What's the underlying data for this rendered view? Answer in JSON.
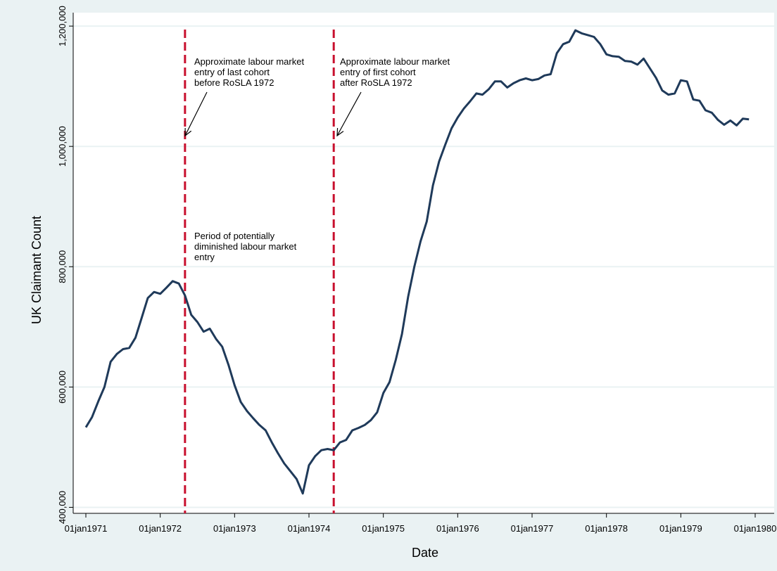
{
  "chart_data": {
    "type": "line",
    "xlabel": "Date",
    "ylabel": "UK Claimant Count",
    "xlim": [
      1971.0,
      1980.0
    ],
    "ylim": [
      390000,
      1220000
    ],
    "x_ticks": [
      {
        "value": 1971,
        "label": "01jan1971"
      },
      {
        "value": 1972,
        "label": "01jan1972"
      },
      {
        "value": 1973,
        "label": "01jan1973"
      },
      {
        "value": 1974,
        "label": "01jan1974"
      },
      {
        "value": 1975,
        "label": "01jan1975"
      },
      {
        "value": 1976,
        "label": "01jan1976"
      },
      {
        "value": 1977,
        "label": "01jan1977"
      },
      {
        "value": 1978,
        "label": "01jan1978"
      },
      {
        "value": 1979,
        "label": "01jan1979"
      },
      {
        "value": 1980,
        "label": "01jan1980"
      }
    ],
    "y_ticks": [
      {
        "value": 400000,
        "label": "400,000"
      },
      {
        "value": 600000,
        "label": "600,000"
      },
      {
        "value": 800000,
        "label": "800,000"
      },
      {
        "value": 1000000,
        "label": "1,000,000"
      },
      {
        "value": 1200000,
        "label": "1,200,000"
      }
    ],
    "grid": true,
    "colors": {
      "line": "#1f3a5a",
      "reference_line": "#c8102e",
      "panel": "#eaf2f3",
      "plot": "#ffffff",
      "grid": "#eaf2f3"
    },
    "series": [
      {
        "x": [
          1971.0,
          1971.083,
          1971.167,
          1971.25,
          1971.333,
          1971.417,
          1971.5,
          1971.583,
          1971.667,
          1971.75,
          1971.833,
          1971.917,
          1972.0,
          1972.083,
          1972.167,
          1972.25,
          1972.333,
          1972.417,
          1972.5,
          1972.583,
          1972.667,
          1972.75,
          1972.833,
          1972.917,
          1973.0,
          1973.083,
          1973.167,
          1973.25,
          1973.333,
          1973.417,
          1973.5,
          1973.583,
          1973.667,
          1973.75,
          1973.833,
          1973.917,
          1974.0,
          1974.083,
          1974.167,
          1974.25,
          1974.333,
          1974.417,
          1974.5,
          1974.583,
          1974.667,
          1974.75,
          1974.833,
          1974.917,
          1975.0,
          1975.083,
          1975.167,
          1975.25,
          1975.333,
          1975.417,
          1975.5,
          1975.583,
          1975.667,
          1975.75,
          1975.833,
          1975.917,
          1976.0,
          1976.083,
          1976.167,
          1976.25,
          1976.333,
          1976.417,
          1976.5,
          1976.583,
          1976.667,
          1976.75,
          1976.833,
          1976.917,
          1977.0,
          1977.083,
          1977.167,
          1977.25,
          1977.333,
          1977.417,
          1977.5,
          1977.583,
          1977.667,
          1977.75,
          1977.833,
          1977.917,
          1978.0,
          1978.083,
          1978.167,
          1978.25,
          1978.333,
          1978.417,
          1978.5,
          1978.583,
          1978.667,
          1978.75,
          1978.833,
          1978.917,
          1979.0,
          1979.083,
          1979.167,
          1979.25,
          1979.333,
          1979.417,
          1979.5,
          1979.583,
          1979.667,
          1979.75,
          1979.833,
          1979.917
        ],
        "values": [
          533000,
          550000,
          576000,
          600000,
          642000,
          655000,
          663000,
          665000,
          682000,
          715000,
          748000,
          758000,
          755000,
          765000,
          776000,
          772000,
          752000,
          720000,
          708000,
          692000,
          697000,
          680000,
          667000,
          637000,
          603000,
          575000,
          560000,
          548000,
          537000,
          528000,
          508000,
          490000,
          473000,
          460000,
          447000,
          423000,
          470000,
          485000,
          495000,
          497000,
          495000,
          508000,
          512000,
          528000,
          532000,
          537000,
          545000,
          558000,
          590000,
          608000,
          645000,
          688000,
          750000,
          800000,
          842000,
          875000,
          935000,
          975000,
          1003000,
          1030000,
          1048000,
          1063000,
          1075000,
          1088000,
          1086000,
          1095000,
          1108000,
          1108000,
          1098000,
          1105000,
          1110000,
          1113000,
          1110000,
          1112000,
          1118000,
          1120000,
          1155000,
          1170000,
          1174000,
          1193000,
          1188000,
          1185000,
          1182000,
          1170000,
          1153000,
          1150000,
          1149000,
          1142000,
          1141000,
          1136000,
          1146000,
          1130000,
          1114000,
          1093000,
          1086000,
          1088000,
          1110000,
          1108000,
          1078000,
          1076000,
          1060000,
          1056000,
          1044000,
          1036000,
          1043000,
          1035000,
          1046000,
          1045000
        ]
      }
    ],
    "reference_lines": [
      {
        "x": 1972.333
      },
      {
        "x": 1974.333
      }
    ],
    "annotations": [
      {
        "text": "Approximate labour market entry of last cohort before RoSLA 1972",
        "lines": [
          "Approximate labour market",
          "entry of last cohort",
          "before RoSLA 1972"
        ]
      },
      {
        "text": "Approximate labour market entry of first cohort after RoSLA 1972",
        "lines": [
          "Approximate labour market",
          "entry of first cohort",
          "after RoSLA 1972"
        ]
      },
      {
        "text": "Period of potentially diminished labour market entry",
        "lines": [
          "Period of potentially",
          "diminished labour market",
          "entry"
        ]
      }
    ]
  }
}
